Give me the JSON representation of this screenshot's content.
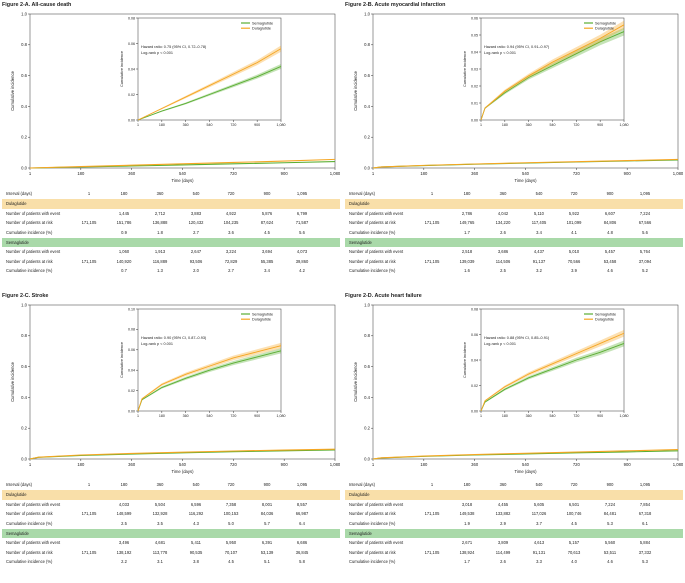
{
  "colors": {
    "semaglutide": "#5aae32",
    "dulaglutide": "#f5a623",
    "dula_band": "#f9dfa9",
    "sema_band": "#a9d9a9"
  },
  "chart_data": [
    {
      "type": "line",
      "title": "Figure 2-A. All-cause death",
      "xlabel": "Time (days)",
      "ylabel": "Cumulative incidence",
      "xlim": [
        0,
        1080
      ],
      "ylim": [
        0,
        1.0
      ],
      "x_ticks": [
        "1",
        "180",
        "360",
        "540",
        "720",
        "900",
        "1,080"
      ],
      "y_ticks": [
        "0.0",
        "0.2",
        "0.4",
        "0.6",
        "0.8",
        "1.0"
      ],
      "inset": {
        "ylim": [
          0,
          0.08
        ],
        "y_ticks": [
          "0.00",
          "0.02",
          "0.04",
          "0.06",
          "0.08"
        ],
        "x_ticks": [
          "1",
          "180",
          "360",
          "540",
          "720",
          "900",
          "1,080"
        ],
        "ylabel": "Cumulative incidence",
        "legend": [
          "Semaglutide",
          "Dulaglutide"
        ],
        "hazard_ratio": "Hazard ratio: 0.75 (95% CI, 0.72–0.78)",
        "log_rank": "Log-rank p < 0.001"
      },
      "series": [
        {
          "name": "Semaglutide",
          "x": [
            0,
            180,
            360,
            540,
            720,
            900,
            1080
          ],
          "values": [
            0,
            0.007,
            0.013,
            0.02,
            0.027,
            0.034,
            0.042
          ]
        },
        {
          "name": "Dulaglutide",
          "x": [
            0,
            180,
            360,
            540,
            720,
            900,
            1080
          ],
          "values": [
            0,
            0.009,
            0.018,
            0.027,
            0.036,
            0.045,
            0.056
          ]
        }
      ],
      "table": {
        "interval_label": "Interval (days)",
        "intervals": [
          "1",
          "180",
          "360",
          "540",
          "720",
          "900",
          "1,095"
        ],
        "groups": [
          {
            "name": "Dulaglutide",
            "rows": [
              {
                "label": "Number of patients with event",
                "values": [
                  "",
                  "1,445",
                  "2,712",
                  "3,883",
                  "4,922",
                  "5,876",
                  "6,799"
                ]
              },
              {
                "label": "Number of patients at risk",
                "values": [
                  "171,105",
                  "151,786",
                  "136,888",
                  "120,432",
                  "104,235",
                  "87,624",
                  "71,587"
                ]
              },
              {
                "label": "Cumulative incidence (%)",
                "values": [
                  "",
                  "0.9",
                  "1.8",
                  "2.7",
                  "3.6",
                  "4.5",
                  "5.6"
                ]
              }
            ]
          },
          {
            "name": "Semaglutide",
            "rows": [
              {
                "label": "Number of patients with event",
                "values": [
                  "",
                  "1,060",
                  "1,913",
                  "2,647",
                  "3,224",
                  "3,694",
                  "4,073"
                ]
              },
              {
                "label": "Number of patients at risk",
                "values": [
                  "171,105",
                  "140,920",
                  "116,889",
                  "93,506",
                  "72,829",
                  "55,385",
                  "39,860"
                ]
              },
              {
                "label": "Cumulative incidence (%)",
                "values": [
                  "",
                  "0.7",
                  "1.3",
                  "2.0",
                  "2.7",
                  "3.4",
                  "4.2"
                ]
              }
            ]
          }
        ]
      }
    },
    {
      "type": "line",
      "title": "Figure 2-B. Acute myocardial infarction",
      "xlabel": "Time (days)",
      "ylabel": "Cumulative incidence",
      "xlim": [
        0,
        1080
      ],
      "ylim": [
        0,
        1.0
      ],
      "x_ticks": [
        "1",
        "180",
        "360",
        "540",
        "720",
        "900",
        "1,080"
      ],
      "y_ticks": [
        "0.0",
        "0.2",
        "0.4",
        "0.6",
        "0.8",
        "1.0"
      ],
      "inset": {
        "ylim": [
          0,
          0.06
        ],
        "y_ticks": [
          "0.00",
          "0.01",
          "0.02",
          "0.03",
          "0.04",
          "0.05",
          "0.06"
        ],
        "x_ticks": [
          "1",
          "180",
          "360",
          "540",
          "720",
          "900",
          "1,080"
        ],
        "ylabel": "Cumulative incidence",
        "legend": [
          "Semaglutide",
          "Dulaglutide"
        ],
        "hazard_ratio": "Hazard ratio: 0.94 (95% CI, 0.91–0.97)",
        "log_rank": "Log-rank p < 0.001"
      },
      "series": [
        {
          "name": "Semaglutide",
          "x": [
            0,
            30,
            180,
            360,
            540,
            720,
            900,
            1080
          ],
          "values": [
            0,
            0.007,
            0.016,
            0.025,
            0.032,
            0.039,
            0.046,
            0.052
          ]
        },
        {
          "name": "Dulaglutide",
          "x": [
            0,
            30,
            180,
            360,
            540,
            720,
            900,
            1080
          ],
          "values": [
            0,
            0.007,
            0.017,
            0.026,
            0.034,
            0.041,
            0.048,
            0.056
          ]
        }
      ],
      "table": {
        "interval_label": "Interval (days)",
        "intervals": [
          "1",
          "180",
          "360",
          "540",
          "720",
          "900",
          "1,095"
        ],
        "groups": [
          {
            "name": "Dulaglutide",
            "rows": [
              {
                "label": "Number of patients with event",
                "values": [
                  "",
                  "2,786",
                  "4,042",
                  "5,110",
                  "5,922",
                  "6,607",
                  "7,224"
                ]
              },
              {
                "label": "Number of patients at risk",
                "values": [
                  "171,105",
                  "149,765",
                  "134,220",
                  "117,405",
                  "101,099",
                  "84,806",
                  "67,566"
                ]
              },
              {
                "label": "Cumulative incidence (%)",
                "values": [
                  "",
                  "1.7",
                  "2.6",
                  "3.4",
                  "4.1",
                  "4.8",
                  "5.6"
                ]
              }
            ]
          },
          {
            "name": "Semaglutide",
            "rows": [
              {
                "label": "Number of patients with event",
                "values": [
                  "",
                  "2,518",
                  "3,686",
                  "4,437",
                  "5,010",
                  "5,457",
                  "5,764"
                ]
              },
              {
                "label": "Number of patients at risk",
                "values": [
                  "171,105",
                  "139,039",
                  "114,506",
                  "91,137",
                  "70,566",
                  "53,458",
                  "37,094"
                ]
              },
              {
                "label": "Cumulative incidence (%)",
                "values": [
                  "",
                  "1.6",
                  "2.5",
                  "3.2",
                  "3.9",
                  "4.6",
                  "5.2"
                ]
              }
            ]
          }
        ]
      }
    },
    {
      "type": "line",
      "title": "Figure 2-C. Stroke",
      "xlabel": "Time (days)",
      "ylabel": "Cumulative incidence",
      "xlim": [
        0,
        1080
      ],
      "ylim": [
        0,
        1.0
      ],
      "x_ticks": [
        "1",
        "180",
        "360",
        "540",
        "720",
        "900",
        "1,080"
      ],
      "y_ticks": [
        "0.0",
        "0.2",
        "0.4",
        "0.6",
        "0.8",
        "1.0"
      ],
      "inset": {
        "ylim": [
          0,
          0.1
        ],
        "y_ticks": [
          "0.00",
          "0.02",
          "0.04",
          "0.06",
          "0.08",
          "0.10"
        ],
        "x_ticks": [
          "1",
          "180",
          "360",
          "540",
          "720",
          "900",
          "1,080"
        ],
        "ylabel": "Cumulative incidence",
        "legend": [
          "Semaglutide",
          "Dulaglutide"
        ],
        "hazard_ratio": "Hazard ratio: 0.90 (95% CI, 0.87–0.93)",
        "log_rank": "Log-rank p < 0.001"
      },
      "series": [
        {
          "name": "Semaglutide",
          "x": [
            0,
            30,
            180,
            360,
            540,
            720,
            900,
            1080
          ],
          "values": [
            0,
            0.011,
            0.023,
            0.032,
            0.04,
            0.047,
            0.053,
            0.059
          ]
        },
        {
          "name": "Dulaglutide",
          "x": [
            0,
            30,
            180,
            360,
            540,
            720,
            900,
            1080
          ],
          "values": [
            0,
            0.012,
            0.026,
            0.036,
            0.044,
            0.052,
            0.058,
            0.064
          ]
        }
      ],
      "table": {
        "interval_label": "Interval (days)",
        "intervals": [
          "1",
          "180",
          "360",
          "540",
          "720",
          "900",
          "1,095"
        ],
        "groups": [
          {
            "name": "Dulaglutide",
            "rows": [
              {
                "label": "Number of patients with event",
                "values": [
                  "",
                  "4,033",
                  "5,504",
                  "6,596",
                  "7,358",
                  "8,001",
                  "8,557"
                ]
              },
              {
                "label": "Number of patients at risk",
                "values": [
                  "171,105",
                  "148,599",
                  "132,928",
                  "116,292",
                  "100,153",
                  "84,036",
                  "66,987"
                ]
              },
              {
                "label": "Cumulative incidence (%)",
                "values": [
                  "",
                  "2.5",
                  "3.5",
                  "4.3",
                  "5.0",
                  "5.7",
                  "6.4"
                ]
              }
            ]
          },
          {
            "name": "Semaglutide",
            "rows": [
              {
                "label": "Number of patients with event",
                "values": [
                  "",
                  "3,496",
                  "4,681",
                  "5,411",
                  "5,950",
                  "6,391",
                  "6,686"
                ]
              },
              {
                "label": "Number of patients at risk",
                "values": [
                  "171,105",
                  "138,192",
                  "113,778",
                  "90,535",
                  "70,107",
                  "53,139",
                  "36,845"
                ]
              },
              {
                "label": "Cumulative incidence (%)",
                "values": [
                  "",
                  "2.2",
                  "3.1",
                  "3.8",
                  "4.5",
                  "5.1",
                  "5.8"
                ]
              }
            ]
          }
        ]
      }
    },
    {
      "type": "line",
      "title": "Figure 2-D. Acute heart failure",
      "xlabel": "Time (days)",
      "ylabel": "Cumulative incidence",
      "xlim": [
        0,
        1080
      ],
      "ylim": [
        0,
        1.0
      ],
      "x_ticks": [
        "1",
        "180",
        "360",
        "540",
        "720",
        "900",
        "1,080"
      ],
      "y_ticks": [
        "0.0",
        "0.2",
        "0.4",
        "0.6",
        "0.8",
        "1.0"
      ],
      "inset": {
        "ylim": [
          0,
          0.08
        ],
        "y_ticks": [
          "0.00",
          "0.02",
          "0.04",
          "0.06",
          "0.08"
        ],
        "x_ticks": [
          "1",
          "180",
          "360",
          "540",
          "720",
          "900",
          "1,080"
        ],
        "ylabel": "Cumulative incidence",
        "legend": [
          "Semaglutide",
          "Dulaglutide"
        ],
        "hazard_ratio": "Hazard ratio: 0.88 (95% CI, 0.85–0.91)",
        "log_rank": "Log-rank p < 0.001"
      },
      "series": [
        {
          "name": "Semaglutide",
          "x": [
            0,
            30,
            180,
            360,
            540,
            720,
            900,
            1080
          ],
          "values": [
            0,
            0.007,
            0.017,
            0.026,
            0.033,
            0.04,
            0.046,
            0.053
          ]
        },
        {
          "name": "Dulaglutide",
          "x": [
            0,
            30,
            180,
            360,
            540,
            720,
            900,
            1080
          ],
          "values": [
            0,
            0.008,
            0.019,
            0.029,
            0.037,
            0.045,
            0.053,
            0.061
          ]
        }
      ],
      "table": {
        "interval_label": "Interval (days)",
        "intervals": [
          "1",
          "180",
          "360",
          "540",
          "720",
          "900",
          "1,095"
        ],
        "groups": [
          {
            "name": "Dulaglutide",
            "rows": [
              {
                "label": "Number of patients with event",
                "values": [
                  "",
                  "3,018",
                  "4,455",
                  "5,605",
                  "6,501",
                  "7,224",
                  "7,854"
                ]
              },
              {
                "label": "Number of patients at risk",
                "values": [
                  "171,105",
                  "149,538",
                  "133,882",
                  "117,026",
                  "100,746",
                  "84,481",
                  "67,318"
                ]
              },
              {
                "label": "Cumulative incidence (%)",
                "values": [
                  "",
                  "1.9",
                  "2.9",
                  "3.7",
                  "4.5",
                  "5.3",
                  "6.1"
                ]
              }
            ]
          },
          {
            "name": "Semaglutide",
            "rows": [
              {
                "label": "Number of patients with event",
                "values": [
                  "",
                  "2,671",
                  "3,809",
                  "4,613",
                  "5,157",
                  "5,560",
                  "5,884"
                ]
              },
              {
                "label": "Number of patients at risk",
                "values": [
                  "171,105",
                  "138,924",
                  "114,499",
                  "91,131",
                  "70,613",
                  "53,511",
                  "37,332"
                ]
              },
              {
                "label": "Cumulative incidence (%)",
                "values": [
                  "",
                  "1.7",
                  "2.6",
                  "3.3",
                  "4.0",
                  "4.6",
                  "5.3"
                ]
              }
            ]
          }
        ]
      }
    }
  ]
}
